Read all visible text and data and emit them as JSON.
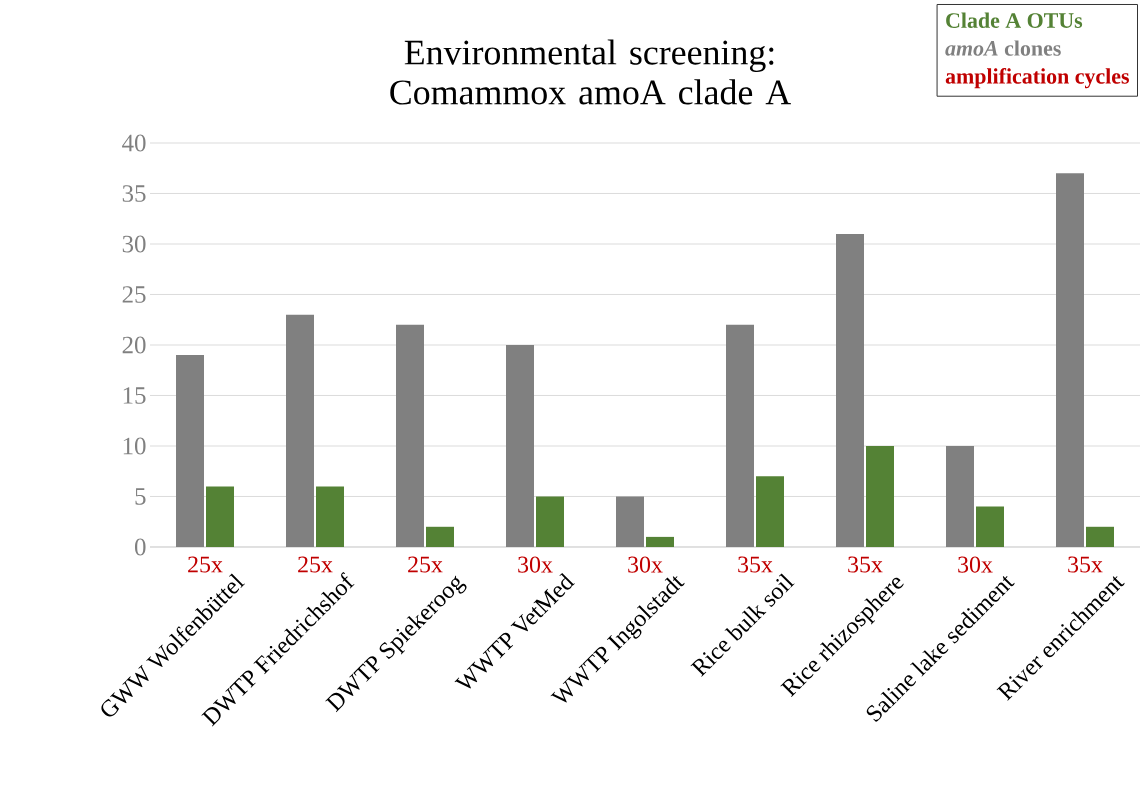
{
  "chart_data": {
    "type": "bar",
    "title": "Environmental screening: Comammox amoA clade A",
    "categories": [
      "GWW Wolfenbüttel",
      "DWTP Friedrichshof",
      "DWTP Spiekeroog",
      "WWTP VetMed",
      "WWTP Ingolstadt",
      "Rice bulk soil",
      "Rice rhizosphere",
      "Saline lake sediment",
      "River enrichment"
    ],
    "series": [
      {
        "name": "*amoA* clones",
        "color": "#808080",
        "values": [
          19,
          23,
          22,
          20,
          5,
          22,
          31,
          10,
          37
        ]
      },
      {
        "name": "Clade A OTUs",
        "color": "#548235",
        "values": [
          6,
          6,
          2,
          5,
          1,
          7,
          10,
          4,
          2
        ]
      }
    ],
    "annotations": [
      "25x",
      "25x",
      "25x",
      "30x",
      "30x",
      "35x",
      "35x",
      "30x",
      "35x",
      "amplification cycles"
    ],
    "ylim": [
      0,
      40
    ],
    "yticks": [
      0,
      5,
      10,
      15,
      20,
      25,
      30,
      35,
      40
    ],
    "grid": "y",
    "legend": "top right"
  }
}
